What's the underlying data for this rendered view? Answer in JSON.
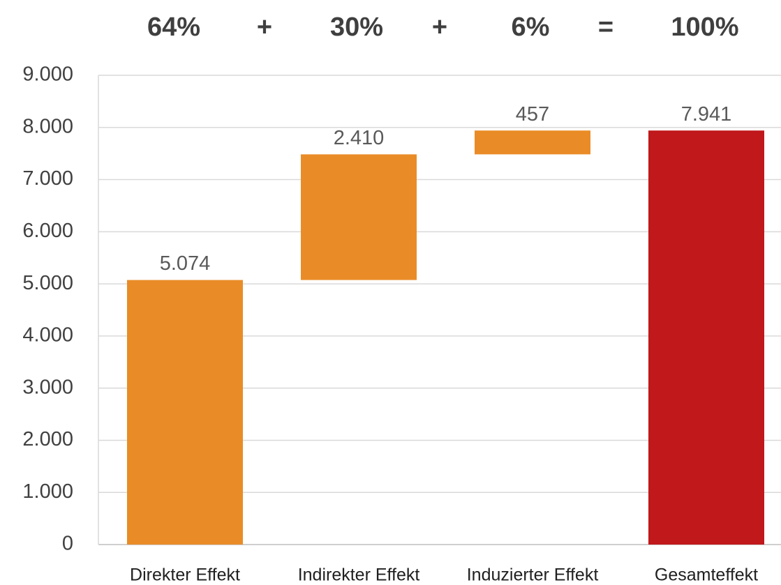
{
  "chart_data": {
    "type": "bar",
    "variant": "waterfall",
    "title": "",
    "xlabel": "",
    "ylabel": "",
    "categories": [
      "Direkter Effekt",
      "Indirekter Effekt",
      "Induzierter Effekt",
      "Gesamteffekt"
    ],
    "bars": [
      {
        "category": "Direkter Effekt",
        "base": 0,
        "value": 5074,
        "label": "5.074",
        "color": "#e98c27"
      },
      {
        "category": "Indirekter Effekt",
        "base": 5074,
        "value": 2410,
        "label": "2.410",
        "color": "#e98c27"
      },
      {
        "category": "Induzierter Effekt",
        "base": 7484,
        "value": 457,
        "label": "457",
        "color": "#e98c27"
      },
      {
        "category": "Gesamteffekt",
        "base": 0,
        "value": 7941,
        "label": "7.941",
        "color": "#c0181b"
      }
    ],
    "ylim": [
      0,
      9000
    ],
    "yticks": [
      {
        "value": 0,
        "label": "0"
      },
      {
        "value": 1000,
        "label": "1.000"
      },
      {
        "value": 2000,
        "label": "2.000"
      },
      {
        "value": 3000,
        "label": "3.000"
      },
      {
        "value": 4000,
        "label": "4.000"
      },
      {
        "value": 5000,
        "label": "5.000"
      },
      {
        "value": 6000,
        "label": "6.000"
      },
      {
        "value": 7000,
        "label": "7.000"
      },
      {
        "value": 8000,
        "label": "8.000"
      },
      {
        "value": 9000,
        "label": "9.000"
      }
    ],
    "grid": true,
    "legend": "none",
    "percent_row": [
      "64%",
      "+",
      "30%",
      "+",
      "6%",
      "=",
      "100%"
    ]
  }
}
